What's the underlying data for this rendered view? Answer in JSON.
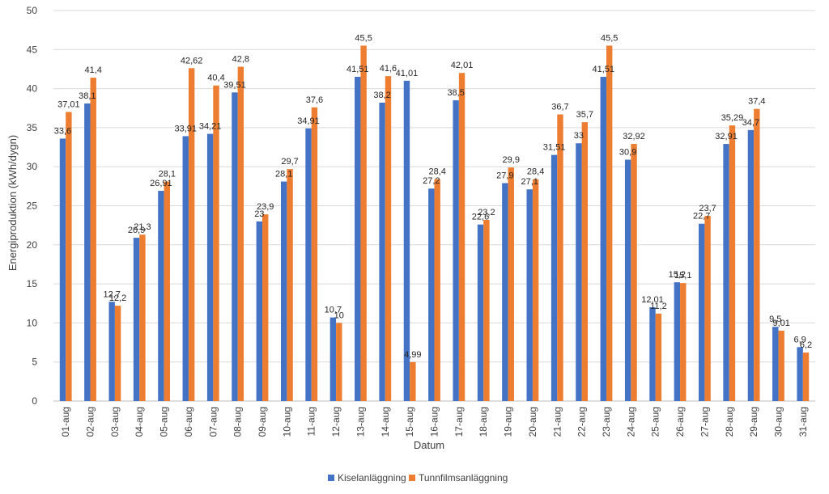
{
  "chart_data": {
    "type": "bar",
    "xlabel": "Datum",
    "ylabel": "Energiproduktion  (kWh/dygn)",
    "ylim": [
      0,
      50
    ],
    "yticks": [
      0,
      5,
      10,
      15,
      20,
      25,
      30,
      35,
      40,
      45,
      50
    ],
    "grid": true,
    "legend_position": "bottom",
    "categories": [
      "01-aug",
      "02-aug",
      "03-aug",
      "04-aug",
      "05-aug",
      "06-aug",
      "07-aug",
      "08-aug",
      "09-aug",
      "10-aug",
      "11-aug",
      "12-aug",
      "13-aug",
      "14-aug",
      "15-aug",
      "16-aug",
      "17-aug",
      "18-aug",
      "19-aug",
      "20-aug",
      "21-aug",
      "22-aug",
      "23-aug",
      "24-aug",
      "25-aug",
      "26-aug",
      "27-aug",
      "28-aug",
      "29-aug",
      "30-aug",
      "31-aug"
    ],
    "series": [
      {
        "name": "Kiselanläggning",
        "color": "#4472C4",
        "values": [
          33.6,
          38.1,
          12.7,
          20.9,
          26.91,
          33.91,
          34.21,
          39.51,
          23,
          28.1,
          34.91,
          10.7,
          41.51,
          38.2,
          41.01,
          27.2,
          38.5,
          22.6,
          27.9,
          27.1,
          31.51,
          33,
          41.51,
          30.9,
          12.01,
          15.2,
          22.7,
          32.91,
          34.7,
          9.5,
          6.9
        ],
        "labels": [
          "33,6",
          "38,1",
          "12,7",
          "20,9",
          "26,91",
          "33,91",
          "34,21",
          "39,51",
          "23",
          "28,1",
          "34,91",
          "10,7",
          "41,51",
          "38,2",
          "41,01",
          "27,2",
          "38,5",
          "22,6",
          "27,9",
          "27,1",
          "31,51",
          "33",
          "41,51",
          "30,9",
          "12,01",
          "15,2",
          "22,7",
          "32,91",
          "34,7",
          "9,5",
          "6,9"
        ]
      },
      {
        "name": "Tunnfilmsanläggning",
        "color": "#ED7D31",
        "values": [
          37.01,
          41.4,
          12.2,
          21.3,
          28.1,
          42.62,
          40.4,
          42.8,
          23.9,
          29.7,
          37.6,
          10,
          45.5,
          41.6,
          4.99,
          28.4,
          42.01,
          23.2,
          29.9,
          28.4,
          36.7,
          35.7,
          45.5,
          32.92,
          11.2,
          15.1,
          23.7,
          35.29,
          37.4,
          9.01,
          6.2
        ],
        "labels": [
          "37,01",
          "41,4",
          "12,2",
          "21,3",
          "28,1",
          "42,62",
          "40,4",
          "42,8",
          "23,9",
          "29,7",
          "37,6",
          "10",
          "45,5",
          "41,6",
          "4,99",
          "28,4",
          "42,01",
          "23,2",
          "29,9",
          "28,4",
          "36,7",
          "35,7",
          "45,5",
          "32,92",
          "11,2",
          "15,1",
          "23,7",
          "35,29",
          "37,4",
          "9,01",
          "6,2"
        ]
      }
    ]
  }
}
